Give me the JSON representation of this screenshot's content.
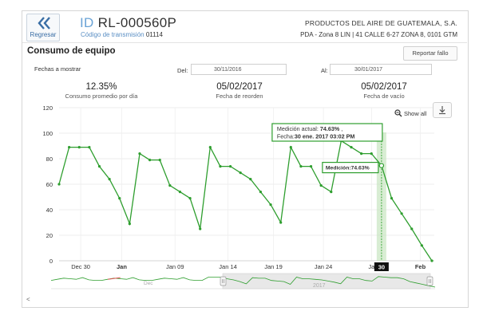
{
  "header": {
    "back_label": "Regresar",
    "id_prefix": "ID",
    "id_value": "RL-000560P",
    "transmission_label": "Código de transmisión",
    "transmission_code": "01114",
    "company": "PRODUCTOS DEL AIRE DE GUATEMALA, S.A.",
    "address": "PDA - Zona 8 LIN | 41 CALLE 6-27 ZONA 8, 0101 GTM"
  },
  "section": {
    "title": "Consumo de equipo",
    "report_button": "Reportar fallo"
  },
  "filters": {
    "dates_label": "Fechas a mostrar",
    "from_label": "Del:",
    "from_value": "30/11/2016",
    "to_label": "Al:",
    "to_value": "30/01/2017"
  },
  "stats": [
    {
      "value": "12.35%",
      "label": "Consumo promedio por día"
    },
    {
      "value": "05/02/2017",
      "label": "Fecha de reorden"
    },
    {
      "value": "05/02/2017",
      "label": "Fecha de vacío"
    }
  ],
  "toolbar": {
    "show_all": "Show all",
    "zoom_icon": "zoom-out-icon",
    "download_icon": "download-icon"
  },
  "tooltip": {
    "line1_prefix": "Medición actual:",
    "line1_value": "74.63%",
    "line1_suffix": ",",
    "line2_prefix": "Fecha:",
    "line2_value": "30 ene. 2017 03:02 PM"
  },
  "marker_label": "Medición:74.63%",
  "crosshair_label": "30",
  "navigator": {
    "left_label": "Dec",
    "right_label": "2017"
  },
  "colors": {
    "line": "#2e9e2e",
    "accent": "#3a6ea5",
    "highlight": "#c8e6c0"
  },
  "chart_data": {
    "type": "line",
    "title": "",
    "xlabel": "",
    "ylabel": "",
    "ylim": [
      0,
      120
    ],
    "yticks": [
      0,
      20,
      40,
      60,
      80,
      100,
      120
    ],
    "xtick_labels": [
      "Dec 30",
      "Jan",
      "Jan 09",
      "Jan 14",
      "Jan 19",
      "Jan 24",
      "Ja",
      "Feb"
    ],
    "xtick_bold": [
      false,
      true,
      false,
      false,
      false,
      false,
      false,
      true
    ],
    "grid": true,
    "series": [
      {
        "values": [
          60,
          89,
          89,
          89,
          74,
          64,
          49,
          29,
          84,
          79,
          79,
          59,
          54,
          49,
          25,
          89,
          74,
          74,
          69,
          64,
          54,
          44,
          30,
          89,
          74,
          74,
          59,
          54,
          94,
          89,
          84,
          84,
          74.63,
          49,
          37,
          25,
          12,
          0
        ]
      }
    ]
  }
}
